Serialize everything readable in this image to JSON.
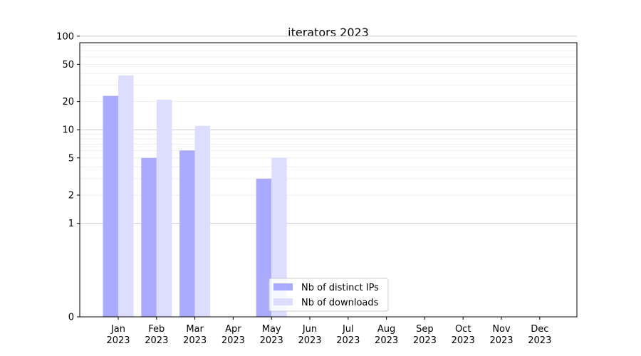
{
  "chart_data": {
    "type": "bar",
    "title": "iterators 2023",
    "categories": [
      "Jan\n2023",
      "Feb\n2023",
      "Mar\n2023",
      "Apr\n2023",
      "May\n2023",
      "Jun\n2023",
      "Jul\n2023",
      "Aug\n2023",
      "Sep\n2023",
      "Oct\n2023",
      "Nov\n2023",
      "Dec\n2023"
    ],
    "series": [
      {
        "name": "Nb of distinct IPs",
        "color": "#aaaaff",
        "values": [
          23,
          5,
          6,
          0,
          3,
          0,
          0,
          0,
          0,
          0,
          0,
          0
        ]
      },
      {
        "name": "Nb of downloads",
        "color": "#ddddff",
        "values": [
          38,
          21,
          11,
          0,
          5,
          0,
          0,
          0,
          0,
          0,
          0,
          0
        ]
      }
    ],
    "yscale": "symlog",
    "yticks": [
      0,
      1,
      2,
      5,
      10,
      20,
      50,
      100
    ],
    "ylim": [
      0,
      120
    ],
    "legend_position": "lower center",
    "grid": true
  }
}
